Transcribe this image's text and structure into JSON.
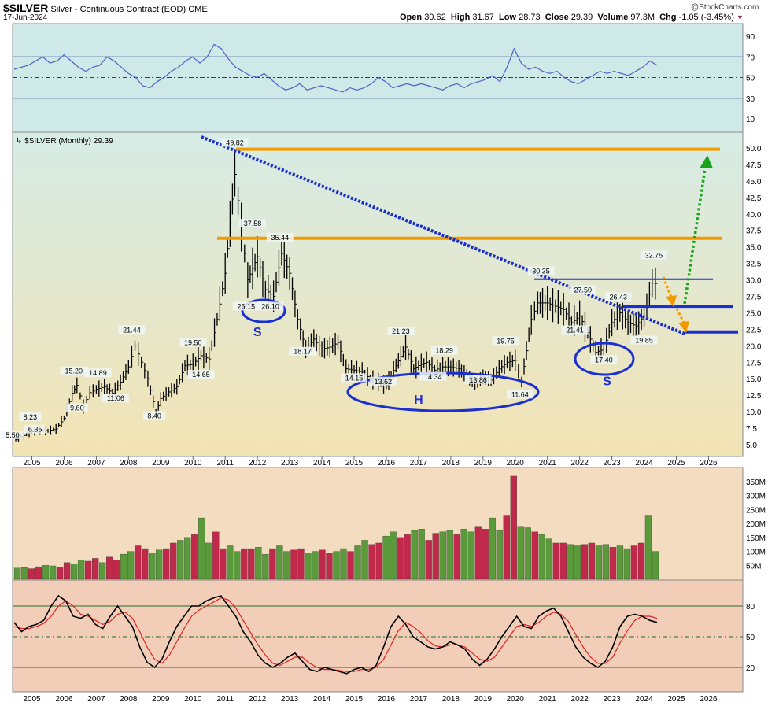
{
  "header": {
    "symbol": "$SILVER",
    "description": "Silver - Continuous Contract (EOD)",
    "exchange": "CME",
    "date": "17-Jun-2024",
    "open_label": "Open",
    "open": "30.62",
    "high_label": "High",
    "high": "31.67",
    "low_label": "Low",
    "low": "28.73",
    "close_label": "Close",
    "close": "29.39",
    "volume_label": "Volume",
    "volume": "97.3M",
    "chg_label": "Chg",
    "chg": "-1.05 (-3.45%)",
    "watermark": "@StockCharts.com"
  },
  "colors": {
    "price_bg_top": "#d6ece6",
    "price_bg_bottom": "#f3e3b4",
    "rsi_bg": "#cfe8e8",
    "volume_bg": "#f3dcc0",
    "stoch_bg": "#f2cdb8",
    "bar": "#000000",
    "trendline": "#1a2fd0",
    "orange_line": "#f39a00",
    "blue_line": "#1a2fd0",
    "green_arrow": "#1aa31a",
    "vol_up": "#5a9a3a",
    "vol_down": "#c0294a",
    "rsi_line": "#4a64c8",
    "stoch_k": "#000000",
    "stoch_d": "#e02020"
  },
  "chart_data": {
    "type": "line",
    "price_legend": "$SILVER (Monthly) 29.39",
    "x_ticks": [
      "2005",
      "2006",
      "2007",
      "2008",
      "2009",
      "2010",
      "2011",
      "2012",
      "2013",
      "2014",
      "2015",
      "2016",
      "2017",
      "2018",
      "2019",
      "2020",
      "2021",
      "2022",
      "2023",
      "2024",
      "2025",
      "2026"
    ],
    "price_ticks": [
      "50.0",
      "47.5",
      "45.0",
      "42.5",
      "40.0",
      "37.5",
      "35.0",
      "32.5",
      "30.0",
      "27.5",
      "25.0",
      "22.5",
      "20.0",
      "17.5",
      "15.0",
      "12.5",
      "10.0",
      "7.5",
      "5.0"
    ],
    "rsi_ticks": [
      "90",
      "70",
      "50",
      "30",
      "10"
    ],
    "volume_ticks": [
      "350M",
      "300M",
      "250M",
      "200M",
      "150M",
      "100M",
      "50M"
    ],
    "stoch_ticks": [
      "80",
      "50",
      "20"
    ],
    "price_range": [
      3.5,
      52
    ],
    "price_series": [
      [
        2004.5,
        5.8
      ],
      [
        2004.75,
        6.4
      ],
      [
        2005.0,
        7.0
      ],
      [
        2005.25,
        7.2
      ],
      [
        2005.5,
        7.1
      ],
      [
        2005.75,
        7.4
      ],
      [
        2006.0,
        9.0
      ],
      [
        2006.25,
        12.8
      ],
      [
        2006.4,
        14.0
      ],
      [
        2006.6,
        10.8
      ],
      [
        2006.8,
        12.9
      ],
      [
        2007.0,
        13.4
      ],
      [
        2007.25,
        13.8
      ],
      [
        2007.5,
        12.8
      ],
      [
        2007.75,
        14.5
      ],
      [
        2008.0,
        16.8
      ],
      [
        2008.2,
        20.0
      ],
      [
        2008.4,
        17.5
      ],
      [
        2008.6,
        15.0
      ],
      [
        2008.85,
        9.8
      ],
      [
        2009.0,
        12.0
      ],
      [
        2009.25,
        13.0
      ],
      [
        2009.5,
        13.8
      ],
      [
        2009.75,
        17.0
      ],
      [
        2010.0,
        17.2
      ],
      [
        2010.25,
        18.5
      ],
      [
        2010.5,
        18.0
      ],
      [
        2010.75,
        24.0
      ],
      [
        2011.0,
        31.0
      ],
      [
        2011.3,
        46.0
      ],
      [
        2011.5,
        38.0
      ],
      [
        2011.7,
        30.0
      ],
      [
        2012.0,
        33.5
      ],
      [
        2012.25,
        28.5
      ],
      [
        2012.5,
        27.5
      ],
      [
        2012.75,
        34.0
      ],
      [
        2013.0,
        31.0
      ],
      [
        2013.25,
        24.0
      ],
      [
        2013.5,
        19.5
      ],
      [
        2013.75,
        21.0
      ],
      [
        2014.0,
        19.5
      ],
      [
        2014.25,
        19.8
      ],
      [
        2014.5,
        20.5
      ],
      [
        2014.75,
        16.5
      ],
      [
        2015.0,
        16.3
      ],
      [
        2015.25,
        16.0
      ],
      [
        2015.5,
        15.0
      ],
      [
        2015.75,
        14.5
      ],
      [
        2016.0,
        14.0
      ],
      [
        2016.3,
        17.0
      ],
      [
        2016.6,
        19.8
      ],
      [
        2016.85,
        16.5
      ],
      [
        2017.0,
        17.0
      ],
      [
        2017.25,
        17.5
      ],
      [
        2017.5,
        16.3
      ],
      [
        2017.75,
        16.8
      ],
      [
        2018.0,
        16.8
      ],
      [
        2018.25,
        16.5
      ],
      [
        2018.5,
        15.5
      ],
      [
        2018.75,
        14.3
      ],
      [
        2019.0,
        15.3
      ],
      [
        2019.25,
        14.8
      ],
      [
        2019.5,
        16.5
      ],
      [
        2019.75,
        17.5
      ],
      [
        2020.0,
        17.8
      ],
      [
        2020.2,
        14.5
      ],
      [
        2020.5,
        24.0
      ],
      [
        2020.7,
        26.5
      ],
      [
        2021.0,
        26.5
      ],
      [
        2021.25,
        26.0
      ],
      [
        2021.5,
        25.5
      ],
      [
        2021.75,
        23.5
      ],
      [
        2022.0,
        24.5
      ],
      [
        2022.25,
        22.0
      ],
      [
        2022.5,
        19.0
      ],
      [
        2022.75,
        19.5
      ],
      [
        2023.0,
        23.5
      ],
      [
        2023.25,
        25.0
      ],
      [
        2023.5,
        23.5
      ],
      [
        2023.75,
        23.0
      ],
      [
        2024.0,
        24.5
      ],
      [
        2024.25,
        29.5
      ],
      [
        2024.45,
        29.4
      ]
    ],
    "annotations": [
      {
        "label": "49.82",
        "x": 2011.3,
        "y": 49.82
      },
      {
        "label": "37.58",
        "x": 2011.85,
        "y": 37.58
      },
      {
        "label": "35.44",
        "x": 2012.7,
        "y": 35.44
      },
      {
        "label": "26.15",
        "x": 2011.65,
        "y": 25.0
      },
      {
        "label": "26.10",
        "x": 2012.4,
        "y": 25.0
      },
      {
        "label": "21.44",
        "x": 2008.1,
        "y": 21.44
      },
      {
        "label": "19.50",
        "x": 2010.0,
        "y": 19.5
      },
      {
        "label": "15.20",
        "x": 2006.3,
        "y": 15.2
      },
      {
        "label": "14.89",
        "x": 2007.05,
        "y": 14.89
      },
      {
        "label": "14.65",
        "x": 2010.25,
        "y": 14.65
      },
      {
        "label": "11.06",
        "x": 2007.6,
        "y": 11.06
      },
      {
        "label": "9.60",
        "x": 2006.4,
        "y": 9.6
      },
      {
        "label": "8.23",
        "x": 2004.95,
        "y": 8.23
      },
      {
        "label": "8.40",
        "x": 2008.8,
        "y": 8.4
      },
      {
        "label": "6.35",
        "x": 2005.1,
        "y": 6.35
      },
      {
        "label": "5.50",
        "x": 2004.4,
        "y": 5.5
      },
      {
        "label": "18.17",
        "x": 2013.4,
        "y": 18.17
      },
      {
        "label": "21.23",
        "x": 2016.45,
        "y": 21.23
      },
      {
        "label": "18.29",
        "x": 2017.8,
        "y": 18.29
      },
      {
        "label": "14.34",
        "x": 2017.45,
        "y": 14.34
      },
      {
        "label": "14.15",
        "x": 2015.0,
        "y": 14.15
      },
      {
        "label": "13.62",
        "x": 2015.9,
        "y": 13.62
      },
      {
        "label": "13.86",
        "x": 2018.85,
        "y": 13.86
      },
      {
        "label": "19.75",
        "x": 2019.7,
        "y": 19.75
      },
      {
        "label": "11.64",
        "x": 2020.15,
        "y": 11.64
      },
      {
        "label": "30.35",
        "x": 2020.8,
        "y": 30.35
      },
      {
        "label": "27.50",
        "x": 2022.1,
        "y": 27.5
      },
      {
        "label": "26.43",
        "x": 2023.2,
        "y": 26.43
      },
      {
        "label": "21.41",
        "x": 2021.85,
        "y": 21.41
      },
      {
        "label": "17.40",
        "x": 2022.75,
        "y": 16.9
      },
      {
        "label": "19.85",
        "x": 2024.0,
        "y": 19.85
      },
      {
        "label": "32.75",
        "x": 2024.3,
        "y": 32.75
      }
    ],
    "pattern_labels": [
      {
        "label": "S",
        "x": 2012.0,
        "y": 21.5
      },
      {
        "label": "H",
        "x": 2017.0,
        "y": 11.2
      },
      {
        "label": "S",
        "x": 2022.85,
        "y": 14.0
      }
    ],
    "rsi_series": [
      58,
      60,
      62,
      66,
      70,
      64,
      66,
      72,
      66,
      60,
      56,
      60,
      62,
      70,
      66,
      60,
      54,
      50,
      42,
      40,
      46,
      50,
      56,
      60,
      66,
      70,
      64,
      70,
      82,
      78,
      68,
      60,
      56,
      52,
      50,
      54,
      48,
      42,
      38,
      40,
      44,
      38,
      40,
      42,
      40,
      38,
      36,
      40,
      38,
      40,
      44,
      50,
      46,
      40,
      42,
      44,
      42,
      44,
      42,
      40,
      38,
      42,
      44,
      40,
      44,
      46,
      48,
      52,
      46,
      60,
      78,
      64,
      58,
      60,
      56,
      54,
      56,
      50,
      46,
      44,
      48,
      52,
      56,
      54,
      56,
      54,
      52,
      56,
      60,
      66,
      62
    ],
    "volume_series": [
      40,
      42,
      38,
      45,
      50,
      48,
      44,
      60,
      55,
      70,
      65,
      75,
      60,
      80,
      70,
      90,
      100,
      120,
      110,
      95,
      105,
      110,
      130,
      140,
      150,
      160,
      220,
      130,
      170,
      110,
      120,
      100,
      110,
      110,
      115,
      90,
      110,
      120,
      100,
      105,
      110,
      95,
      100,
      105,
      95,
      100,
      110,
      100,
      120,
      140,
      125,
      130,
      155,
      170,
      150,
      160,
      175,
      180,
      140,
      165,
      170,
      175,
      160,
      180,
      170,
      190,
      180,
      220,
      175,
      230,
      370,
      190,
      185,
      170,
      160,
      145,
      130,
      130,
      125,
      120,
      125,
      130,
      120,
      125,
      115,
      120,
      110,
      120,
      130,
      230,
      100
    ],
    "stoch_k": [
      64,
      55,
      60,
      62,
      66,
      80,
      90,
      85,
      70,
      68,
      72,
      62,
      58,
      70,
      80,
      70,
      60,
      40,
      25,
      20,
      28,
      45,
      60,
      70,
      80,
      80,
      85,
      88,
      90,
      80,
      70,
      55,
      45,
      32,
      24,
      20,
      24,
      30,
      34,
      26,
      18,
      16,
      20,
      18,
      16,
      14,
      18,
      20,
      16,
      22,
      40,
      60,
      70,
      62,
      50,
      45,
      40,
      38,
      40,
      45,
      42,
      38,
      28,
      22,
      28,
      38,
      50,
      60,
      70,
      60,
      58,
      70,
      75,
      78,
      70,
      55,
      40,
      30,
      24,
      20,
      26,
      40,
      60,
      70,
      72,
      70,
      66,
      64
    ],
    "stoch_d": [
      60,
      58,
      58,
      60,
      63,
      70,
      80,
      85,
      80,
      72,
      70,
      66,
      62,
      65,
      72,
      74,
      68,
      55,
      40,
      28,
      24,
      32,
      45,
      58,
      70,
      76,
      80,
      84,
      88,
      86,
      78,
      66,
      54,
      42,
      32,
      24,
      22,
      26,
      30,
      30,
      24,
      20,
      18,
      18,
      17,
      16,
      16,
      18,
      18,
      20,
      28,
      42,
      56,
      64,
      60,
      54,
      46,
      41,
      40,
      42,
      42,
      40,
      34,
      28,
      26,
      30,
      40,
      50,
      60,
      62,
      60,
      64,
      70,
      74,
      72,
      65,
      52,
      40,
      30,
      24,
      24,
      30,
      44,
      56,
      66,
      70,
      70,
      68
    ]
  }
}
